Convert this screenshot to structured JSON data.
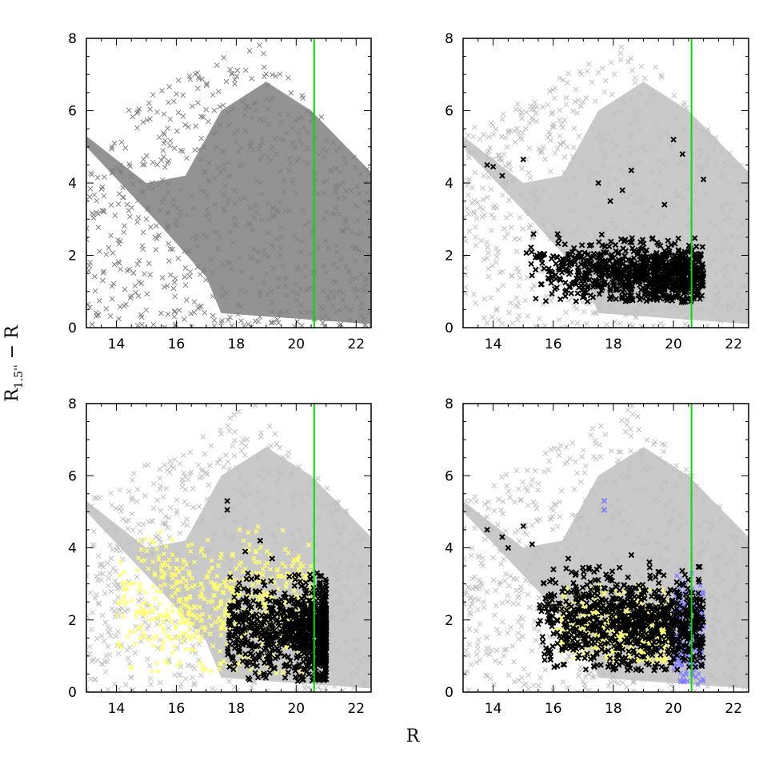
{
  "figure": {
    "xlabel": "R",
    "ylabel_main": "R",
    "ylabel_sub": "1.5''",
    "ylabel_rest": " − R"
  },
  "colors": {
    "background": "#ffffff",
    "all_sources_dark": "#808080",
    "all_sources_light": "#c0c0c0",
    "selected": "#000000",
    "yellow": "#ffff70",
    "blue": "#8080ff",
    "cut_line": "#00dd00",
    "frame": "#000000"
  },
  "chart_data": [
    {
      "type": "scatter",
      "panel": "top-left",
      "xlim": [
        13,
        22.5
      ],
      "ylim": [
        0,
        8
      ],
      "xticks": [
        14,
        16,
        18,
        20,
        22
      ],
      "yticks": [
        0,
        2,
        4,
        6,
        8
      ],
      "vline_x": 20.6,
      "series": [
        {
          "role": "all_sources",
          "color": "#808080",
          "marker": "x",
          "distribution": "full-locus"
        }
      ]
    },
    {
      "type": "scatter",
      "panel": "top-right",
      "xlim": [
        13,
        22.5
      ],
      "ylim": [
        0,
        8
      ],
      "xticks": [
        14,
        16,
        18,
        20,
        22
      ],
      "yticks": [
        0,
        2,
        4,
        6,
        8
      ],
      "vline_x": 20.6,
      "series": [
        {
          "role": "all_sources",
          "color": "#c0c0c0",
          "marker": "x",
          "distribution": "full-locus"
        },
        {
          "role": "selected",
          "color": "#000000",
          "marker": "x",
          "x_range": [
            15.0,
            21.0
          ],
          "y_range": [
            0.7,
            2.6
          ],
          "outliers_x": [
            13.8,
            14.0,
            14.3,
            15.0,
            17.5,
            18.6,
            20.0,
            20.3,
            21.0,
            18.3,
            17.9,
            19.7
          ],
          "outliers_y": [
            4.5,
            4.45,
            4.2,
            4.65,
            4.0,
            4.35,
            5.2,
            4.8,
            4.1,
            3.8,
            3.5,
            3.4
          ]
        }
      ]
    },
    {
      "type": "scatter",
      "panel": "bottom-left",
      "xlim": [
        13,
        22.5
      ],
      "ylim": [
        0,
        8
      ],
      "xticks": [
        14,
        16,
        18,
        20,
        22
      ],
      "yticks": [
        0,
        2,
        4,
        6,
        8
      ],
      "vline_x": 20.6,
      "series": [
        {
          "role": "all_sources",
          "color": "#c0c0c0",
          "marker": "x",
          "distribution": "full-locus"
        },
        {
          "role": "yellow",
          "color": "#ffff70",
          "marker": "x",
          "x_range": [
            14.0,
            20.5
          ],
          "y_range": [
            0.5,
            4.6
          ]
        },
        {
          "role": "selected",
          "color": "#000000",
          "marker": "x",
          "x_range": [
            17.7,
            21.0
          ],
          "y_range": [
            0.3,
            3.3
          ],
          "outliers_x": [
            17.7,
            17.7,
            18.8,
            18.3,
            19.2,
            20.7
          ],
          "outliers_y": [
            5.3,
            5.05,
            4.2,
            3.9,
            3.7,
            3.3
          ]
        }
      ]
    },
    {
      "type": "scatter",
      "panel": "bottom-right",
      "xlim": [
        13,
        22.5
      ],
      "ylim": [
        0,
        8
      ],
      "xticks": [
        14,
        16,
        18,
        20,
        22
      ],
      "yticks": [
        0,
        2,
        4,
        6,
        8
      ],
      "vline_x": 20.6,
      "series": [
        {
          "role": "all_sources",
          "color": "#c0c0c0",
          "marker": "x",
          "distribution": "full-locus"
        },
        {
          "role": "yellow",
          "color": "#ffff70",
          "marker": "x",
          "x_range": [
            16.0,
            20.0
          ],
          "y_range": [
            0.8,
            3.0
          ]
        },
        {
          "role": "blue",
          "color": "#8080ff",
          "marker": "x",
          "x_range": [
            20.0,
            21.0
          ],
          "y_range": [
            0.2,
            3.3
          ],
          "outliers_x": [
            17.7,
            17.7
          ],
          "outliers_y": [
            5.3,
            5.05
          ]
        },
        {
          "role": "selected",
          "color": "#000000",
          "marker": "x",
          "x_range": [
            15.5,
            21.0
          ],
          "y_range": [
            0.6,
            3.5
          ],
          "outliers_x": [
            13.8,
            14.3,
            14.5,
            15.0,
            15.3,
            16.5,
            17.2,
            18.6,
            19.2
          ],
          "outliers_y": [
            4.5,
            4.3,
            4.0,
            4.6,
            4.1,
            3.7,
            3.4,
            3.8,
            3.6
          ]
        }
      ]
    }
  ]
}
